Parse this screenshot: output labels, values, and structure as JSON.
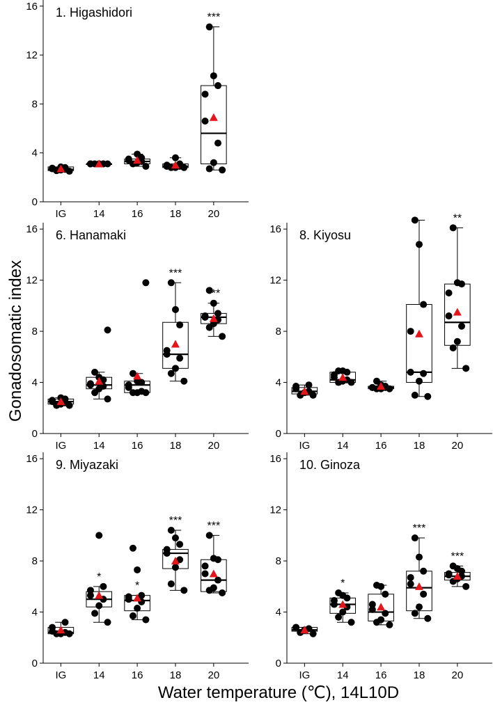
{
  "figure": {
    "ylabel": "Gonadosomatic index",
    "xlabel": "Water temperature (℃), 14L10D"
  },
  "chart_data": [
    {
      "type": "boxplot",
      "title": "1. Higashidori",
      "categories": [
        "IG",
        "14",
        "16",
        "18",
        "20"
      ],
      "ylim": [
        0,
        16.5
      ],
      "yticks": [
        0,
        4,
        8,
        12,
        16
      ],
      "boxes": [
        {
          "min": 2.5,
          "q1": 2.55,
          "median": 2.65,
          "q3": 2.85,
          "max": 2.85,
          "mean": 2.7,
          "points": [
            2.5,
            2.55,
            2.6,
            2.65,
            2.7,
            2.75,
            2.8,
            2.85
          ],
          "sig": ""
        },
        {
          "min": 3.1,
          "q1": 3.1,
          "median": 3.1,
          "q3": 3.1,
          "max": 3.1,
          "mean": 3.1,
          "points": [
            3.1,
            3.1,
            3.1,
            3.1,
            3.1,
            3.1,
            3.1,
            3.1
          ],
          "sig": ""
        },
        {
          "min": 2.9,
          "q1": 3.1,
          "median": 3.3,
          "q3": 3.5,
          "max": 3.9,
          "mean": 3.4,
          "points": [
            2.9,
            3.1,
            3.2,
            3.3,
            3.4,
            3.5,
            3.6,
            3.9
          ],
          "sig": ""
        },
        {
          "min": 2.8,
          "q1": 2.8,
          "median": 2.9,
          "q3": 3.1,
          "max": 3.6,
          "mean": 3.0,
          "points": [
            2.8,
            2.8,
            2.8,
            2.9,
            2.9,
            3.0,
            3.1,
            3.6
          ],
          "sig": ""
        },
        {
          "min": 2.6,
          "q1": 3.1,
          "median": 5.6,
          "q3": 9.5,
          "max": 14.3,
          "mean": 6.9,
          "points": [
            2.6,
            2.7,
            3.2,
            4.8,
            6.6,
            8.8,
            9.5,
            10.3,
            14.3
          ],
          "sig": "***"
        }
      ]
    },
    {
      "type": "boxplot",
      "title": "6. Hanamaki",
      "categories": [
        "IG",
        "14",
        "16",
        "18",
        "20"
      ],
      "ylim": [
        0,
        16.5
      ],
      "yticks": [
        0,
        4,
        8,
        12,
        16
      ],
      "boxes": [
        {
          "min": 2.2,
          "q1": 2.3,
          "median": 2.5,
          "q3": 2.7,
          "max": 2.8,
          "mean": 2.5,
          "points": [
            2.2,
            2.2,
            2.3,
            2.4,
            2.5,
            2.6,
            2.7,
            2.8
          ],
          "sig": ""
        },
        {
          "min": 2.7,
          "q1": 3.5,
          "median": 3.8,
          "q3": 4.4,
          "max": 4.8,
          "mean": 4.1,
          "points": [
            2.7,
            3.2,
            3.5,
            3.7,
            3.8,
            3.9,
            4.2,
            4.4,
            4.8,
            8.1
          ],
          "sig": ""
        },
        {
          "min": 3.2,
          "q1": 3.2,
          "median": 3.8,
          "q3": 4.1,
          "max": 4.7,
          "mean": 4.5,
          "points": [
            3.2,
            3.2,
            3.2,
            3.3,
            3.6,
            3.8,
            4.0,
            4.1,
            4.7,
            11.8
          ],
          "sig": ""
        },
        {
          "min": 4.1,
          "q1": 5.1,
          "median": 6.2,
          "q3": 8.7,
          "max": 11.8,
          "mean": 7.0,
          "points": [
            4.1,
            4.7,
            5.1,
            5.9,
            6.2,
            6.5,
            8.5,
            9.7,
            11.8
          ],
          "sig": "***"
        },
        {
          "min": 7.6,
          "q1": 8.6,
          "median": 9.1,
          "q3": 9.4,
          "max": 10.2,
          "mean": 9.0,
          "points": [
            7.6,
            8.3,
            8.6,
            8.9,
            9.1,
            9.2,
            9.4,
            10.2,
            11.2
          ],
          "sig": "***"
        }
      ]
    },
    {
      "type": "boxplot",
      "title": "8. Kiyosu",
      "categories": [
        "IG",
        "14",
        "16",
        "18",
        "20"
      ],
      "ylim": [
        0,
        16.5
      ],
      "yticks": [
        0,
        4,
        8,
        12,
        16
      ],
      "boxes": [
        {
          "min": 3.0,
          "q1": 3.1,
          "median": 3.3,
          "q3": 3.6,
          "max": 3.8,
          "mean": 3.3,
          "points": [
            3.0,
            3.0,
            3.2,
            3.3,
            3.5,
            3.7,
            3.8
          ],
          "sig": ""
        },
        {
          "min": 4.0,
          "q1": 4.0,
          "median": 4.2,
          "q3": 4.8,
          "max": 4.9,
          "mean": 4.4,
          "points": [
            4.0,
            4.0,
            4.1,
            4.2,
            4.4,
            4.6,
            4.8,
            4.9,
            4.9
          ],
          "sig": ""
        },
        {
          "min": 3.5,
          "q1": 3.5,
          "median": 3.6,
          "q3": 3.7,
          "max": 4.1,
          "mean": 3.7,
          "points": [
            3.5,
            3.5,
            3.5,
            3.6,
            3.6,
            3.6,
            3.7,
            3.8,
            4.1
          ],
          "sig": ""
        },
        {
          "min": 2.9,
          "q1": 4.0,
          "median": 4.8,
          "q3": 10.1,
          "max": 16.7,
          "mean": 7.8,
          "points": [
            2.9,
            3.0,
            4.1,
            4.7,
            4.8,
            8.0,
            10.1,
            14.8,
            16.7
          ],
          "sig": ""
        },
        {
          "min": 5.1,
          "q1": 6.9,
          "median": 8.7,
          "q3": 11.7,
          "max": 16.1,
          "mean": 9.5,
          "points": [
            5.1,
            6.7,
            7.2,
            8.4,
            9.2,
            11.0,
            11.7,
            11.8,
            16.1
          ],
          "sig": "**"
        }
      ]
    },
    {
      "type": "boxplot",
      "title": "9. Miyazaki",
      "categories": [
        "IG",
        "14",
        "16",
        "18",
        "20"
      ],
      "ylim": [
        0,
        16.5
      ],
      "yticks": [
        0,
        4,
        8,
        12,
        16
      ],
      "boxes": [
        {
          "min": 2.3,
          "q1": 2.3,
          "median": 2.4,
          "q3": 2.8,
          "max": 3.2,
          "mean": 2.6,
          "points": [
            2.3,
            2.3,
            2.3,
            2.4,
            2.5,
            2.8,
            3.2
          ],
          "sig": ""
        },
        {
          "min": 3.2,
          "q1": 4.4,
          "median": 5.0,
          "q3": 5.6,
          "max": 6.0,
          "mean": 5.3,
          "points": [
            3.2,
            3.9,
            4.5,
            5.0,
            5.3,
            5.7,
            6.0,
            10.0
          ],
          "sig": "*"
        },
        {
          "min": 3.4,
          "q1": 4.1,
          "median": 4.9,
          "q3": 5.3,
          "max": 5.3,
          "mean": 5.1,
          "points": [
            3.4,
            3.7,
            4.3,
            4.8,
            5.0,
            5.2,
            5.3,
            7.3,
            9.0
          ],
          "sig": "*"
        },
        {
          "min": 5.7,
          "q1": 7.4,
          "median": 8.6,
          "q3": 8.9,
          "max": 10.4,
          "mean": 8.0,
          "points": [
            5.7,
            6.2,
            7.5,
            8.1,
            8.6,
            8.9,
            9.3,
            9.8,
            10.4
          ],
          "sig": "***"
        },
        {
          "min": 5.5,
          "q1": 5.6,
          "median": 6.5,
          "q3": 8.1,
          "max": 10.0,
          "mean": 7.0,
          "points": [
            5.5,
            5.7,
            5.9,
            6.5,
            7.0,
            7.6,
            8.1,
            8.2,
            10.0
          ],
          "sig": "***"
        }
      ]
    },
    {
      "type": "boxplot",
      "title": "10. Ginoza",
      "categories": [
        "IG",
        "14",
        "16",
        "18",
        "20"
      ],
      "ylim": [
        0,
        16.5
      ],
      "yticks": [
        0,
        4,
        8,
        12,
        16
      ],
      "boxes": [
        {
          "min": 2.3,
          "q1": 2.5,
          "median": 2.6,
          "q3": 2.8,
          "max": 2.8,
          "mean": 2.6,
          "points": [
            2.3,
            2.4,
            2.6,
            2.7,
            2.8,
            2.8
          ],
          "sig": ""
        },
        {
          "min": 3.2,
          "q1": 3.9,
          "median": 4.6,
          "q3": 5.1,
          "max": 5.5,
          "mean": 4.6,
          "points": [
            3.2,
            3.6,
            4.0,
            4.4,
            4.6,
            4.9,
            5.1,
            5.3,
            5.5
          ],
          "sig": "*"
        },
        {
          "min": 3.0,
          "q1": 3.3,
          "median": 4.0,
          "q3": 5.4,
          "max": 6.1,
          "mean": 4.4,
          "points": [
            3.0,
            3.2,
            3.4,
            3.9,
            4.2,
            4.6,
            5.4,
            6.0,
            6.1
          ],
          "sig": ""
        },
        {
          "min": 3.5,
          "q1": 4.1,
          "median": 5.9,
          "q3": 7.2,
          "max": 9.8,
          "mean": 6.0,
          "points": [
            3.5,
            3.9,
            4.4,
            5.4,
            6.2,
            6.7,
            7.2,
            8.3,
            9.8
          ],
          "sig": "***"
        },
        {
          "min": 6.0,
          "q1": 6.5,
          "median": 6.8,
          "q3": 7.1,
          "max": 7.6,
          "mean": 6.8,
          "points": [
            6.0,
            6.4,
            6.6,
            6.8,
            6.9,
            7.0,
            7.2,
            7.4,
            7.6
          ],
          "sig": "***"
        }
      ]
    }
  ]
}
